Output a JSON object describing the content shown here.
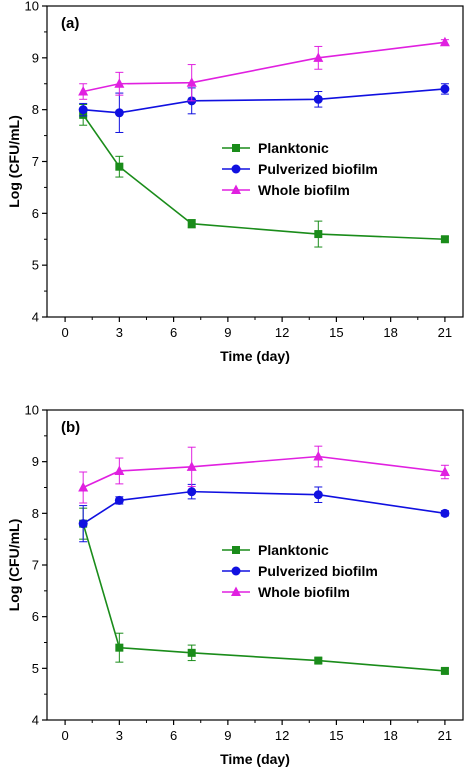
{
  "chart_data": [
    {
      "type": "line",
      "panel_label": "(a)",
      "xlabel": "Time (day)",
      "ylabel": "Log (CFU/mL)",
      "xlim": [
        -1,
        22
      ],
      "ylim": [
        4,
        10
      ],
      "x_ticks": [
        0,
        3,
        6,
        9,
        12,
        15,
        18,
        21
      ],
      "x_tick_labels": [
        "0",
        "3",
        "6",
        "9",
        "12",
        "15",
        "18",
        "21"
      ],
      "y_ticks": [
        4,
        5,
        6,
        7,
        8,
        9,
        10
      ],
      "y_tick_labels": [
        "4",
        "5",
        "6",
        "7",
        "8",
        "9",
        "10"
      ],
      "legend_position": "center-right",
      "series": [
        {
          "name": "Planktonic",
          "color": "#1a8c1a",
          "marker": "square",
          "x": [
            1,
            3,
            7,
            14,
            21
          ],
          "y": [
            7.9,
            6.9,
            5.8,
            5.6,
            5.5
          ],
          "err": [
            0.2,
            0.2,
            0.08,
            0.25,
            0.05
          ]
        },
        {
          "name": "Pulverized biofilm",
          "color": "#1010e0",
          "marker": "circle",
          "x": [
            1,
            3,
            7,
            14,
            21
          ],
          "y": [
            8.0,
            7.94,
            8.17,
            8.2,
            8.4
          ],
          "err": [
            0.12,
            0.38,
            0.25,
            0.15,
            0.1
          ]
        },
        {
          "name": "Whole biofilm",
          "color": "#e020e0",
          "marker": "triangle",
          "x": [
            1,
            3,
            7,
            14,
            21
          ],
          "y": [
            8.35,
            8.5,
            8.52,
            9.0,
            9.3
          ],
          "err": [
            0.15,
            0.22,
            0.35,
            0.22,
            0.05
          ]
        }
      ]
    },
    {
      "type": "line",
      "panel_label": "(b)",
      "xlabel": "Time (day)",
      "ylabel": "Log (CFU/mL)",
      "xlim": [
        -1,
        22
      ],
      "ylim": [
        4,
        10
      ],
      "x_ticks": [
        0,
        3,
        6,
        9,
        12,
        15,
        18,
        21
      ],
      "x_tick_labels": [
        "0",
        "3",
        "6",
        "9",
        "12",
        "15",
        "18",
        "21"
      ],
      "y_ticks": [
        4,
        5,
        6,
        7,
        8,
        9,
        10
      ],
      "y_tick_labels": [
        "4",
        "5",
        "6",
        "7",
        "8",
        "9",
        "10"
      ],
      "legend_position": "center-right",
      "series": [
        {
          "name": "Planktonic",
          "color": "#1a8c1a",
          "marker": "square",
          "x": [
            1,
            3,
            7,
            14,
            21
          ],
          "y": [
            7.8,
            5.4,
            5.3,
            5.15,
            4.95
          ],
          "err": [
            0.3,
            0.28,
            0.15,
            0.05,
            0.05
          ]
        },
        {
          "name": "Pulverized biofilm",
          "color": "#1010e0",
          "marker": "circle",
          "x": [
            1,
            3,
            7,
            14,
            21
          ],
          "y": [
            7.8,
            8.25,
            8.42,
            8.36,
            8.0
          ],
          "err": [
            0.35,
            0.07,
            0.14,
            0.15,
            0.05
          ]
        },
        {
          "name": "Whole biofilm",
          "color": "#e020e0",
          "marker": "triangle",
          "x": [
            1,
            3,
            7,
            14,
            21
          ],
          "y": [
            8.5,
            8.82,
            8.9,
            9.1,
            8.8
          ],
          "err": [
            0.3,
            0.25,
            0.38,
            0.2,
            0.13
          ]
        }
      ]
    }
  ]
}
